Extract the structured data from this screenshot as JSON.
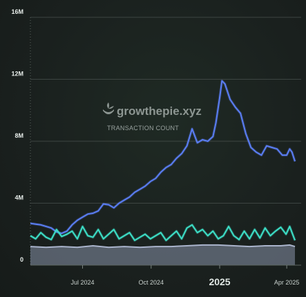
{
  "watermark": {
    "brand": "growthepie.xyz",
    "subtitle": "TRANSACTION COUNT"
  },
  "chart_data": {
    "type": "line",
    "ylim": [
      0,
      16000000
    ],
    "y_ticks": [
      {
        "value": 0,
        "label": "0"
      },
      {
        "value": 4000000,
        "label": "4M"
      },
      {
        "value": 8000000,
        "label": "8M"
      },
      {
        "value": 12000000,
        "label": "12M"
      },
      {
        "value": 16000000,
        "label": "16M"
      }
    ],
    "xlim": [
      "2024-04-22",
      "2025-04-12"
    ],
    "x_ticks": [
      {
        "date": "2024-07-01",
        "label": "Jul 2024",
        "style": "normal"
      },
      {
        "date": "2024-10-01",
        "label": "Oct 2024",
        "style": "normal"
      },
      {
        "date": "2025-01-01",
        "label": "2025",
        "style": "year"
      },
      {
        "date": "2025-04-01",
        "label": "Apr 2025",
        "style": "normal"
      }
    ],
    "grid": true,
    "series": [
      {
        "color": "#5b7ef5",
        "style": "line",
        "points": [
          [
            "2024-04-22",
            2700000
          ],
          [
            "2024-04-29",
            2650000
          ],
          [
            "2024-05-06",
            2600000
          ],
          [
            "2024-05-13",
            2500000
          ],
          [
            "2024-05-20",
            2400000
          ],
          [
            "2024-05-27",
            2150000
          ],
          [
            "2024-06-03",
            2050000
          ],
          [
            "2024-06-10",
            2200000
          ],
          [
            "2024-06-17",
            2600000
          ],
          [
            "2024-06-24",
            2900000
          ],
          [
            "2024-07-01",
            3100000
          ],
          [
            "2024-07-08",
            3300000
          ],
          [
            "2024-07-15",
            3350000
          ],
          [
            "2024-07-22",
            3500000
          ],
          [
            "2024-07-29",
            3950000
          ],
          [
            "2024-08-05",
            3900000
          ],
          [
            "2024-08-12",
            3700000
          ],
          [
            "2024-08-19",
            4000000
          ],
          [
            "2024-08-26",
            4200000
          ],
          [
            "2024-09-02",
            4400000
          ],
          [
            "2024-09-09",
            4700000
          ],
          [
            "2024-09-16",
            4900000
          ],
          [
            "2024-09-23",
            5100000
          ],
          [
            "2024-09-30",
            5400000
          ],
          [
            "2024-10-07",
            5600000
          ],
          [
            "2024-10-14",
            6000000
          ],
          [
            "2024-10-21",
            6300000
          ],
          [
            "2024-10-28",
            6500000
          ],
          [
            "2024-11-04",
            6900000
          ],
          [
            "2024-11-11",
            7200000
          ],
          [
            "2024-11-18",
            7700000
          ],
          [
            "2024-11-25",
            8800000
          ],
          [
            "2024-12-02",
            7900000
          ],
          [
            "2024-12-09",
            8100000
          ],
          [
            "2024-12-16",
            8000000
          ],
          [
            "2024-12-23",
            8300000
          ],
          [
            "2024-12-27",
            9200000
          ],
          [
            "2025-01-01",
            10800000
          ],
          [
            "2025-01-04",
            11900000
          ],
          [
            "2025-01-08",
            11700000
          ],
          [
            "2025-01-15",
            10700000
          ],
          [
            "2025-01-22",
            10200000
          ],
          [
            "2025-01-29",
            9800000
          ],
          [
            "2025-02-05",
            8500000
          ],
          [
            "2025-02-12",
            7600000
          ],
          [
            "2025-02-19",
            7300000
          ],
          [
            "2025-02-26",
            7100000
          ],
          [
            "2025-03-05",
            7700000
          ],
          [
            "2025-03-12",
            7600000
          ],
          [
            "2025-03-19",
            7500000
          ],
          [
            "2025-03-26",
            7100000
          ],
          [
            "2025-04-01",
            7100000
          ],
          [
            "2025-04-05",
            7500000
          ],
          [
            "2025-04-08",
            7300000
          ],
          [
            "2025-04-12",
            6700000
          ]
        ]
      },
      {
        "color": "#3de0c8",
        "style": "line",
        "points": [
          [
            "2024-04-22",
            1900000
          ],
          [
            "2024-04-29",
            1700000
          ],
          [
            "2024-05-06",
            2100000
          ],
          [
            "2024-05-13",
            1800000
          ],
          [
            "2024-05-20",
            1650000
          ],
          [
            "2024-05-27",
            2300000
          ],
          [
            "2024-06-03",
            1850000
          ],
          [
            "2024-06-10",
            2000000
          ],
          [
            "2024-06-17",
            2200000
          ],
          [
            "2024-06-24",
            1700000
          ],
          [
            "2024-07-01",
            2500000
          ],
          [
            "2024-07-08",
            1900000
          ],
          [
            "2024-07-15",
            1800000
          ],
          [
            "2024-07-22",
            2300000
          ],
          [
            "2024-07-29",
            1700000
          ],
          [
            "2024-08-05",
            2000000
          ],
          [
            "2024-08-12",
            2300000
          ],
          [
            "2024-08-19",
            1700000
          ],
          [
            "2024-08-26",
            1900000
          ],
          [
            "2024-09-02",
            2100000
          ],
          [
            "2024-09-09",
            1600000
          ],
          [
            "2024-09-16",
            1800000
          ],
          [
            "2024-09-23",
            2000000
          ],
          [
            "2024-09-30",
            1700000
          ],
          [
            "2024-10-07",
            1900000
          ],
          [
            "2024-10-14",
            2100000
          ],
          [
            "2024-10-21",
            1600000
          ],
          [
            "2024-10-28",
            1900000
          ],
          [
            "2024-11-04",
            2200000
          ],
          [
            "2024-11-11",
            1700000
          ],
          [
            "2024-11-18",
            2400000
          ],
          [
            "2024-11-25",
            2600000
          ],
          [
            "2024-12-02",
            2100000
          ],
          [
            "2024-12-09",
            2300000
          ],
          [
            "2024-12-16",
            1900000
          ],
          [
            "2024-12-23",
            2200000
          ],
          [
            "2024-12-30",
            1700000
          ],
          [
            "2025-01-06",
            1900000
          ],
          [
            "2025-01-13",
            2500000
          ],
          [
            "2025-01-20",
            1900000
          ],
          [
            "2025-01-27",
            1650000
          ],
          [
            "2025-02-03",
            2200000
          ],
          [
            "2025-02-10",
            1700000
          ],
          [
            "2025-02-17",
            2300000
          ],
          [
            "2025-02-24",
            1750000
          ],
          [
            "2025-03-03",
            2400000
          ],
          [
            "2025-03-10",
            1900000
          ],
          [
            "2025-03-17",
            2200000
          ],
          [
            "2025-03-24",
            2450000
          ],
          [
            "2025-03-31",
            2000000
          ],
          [
            "2025-04-05",
            2500000
          ],
          [
            "2025-04-12",
            1600000
          ]
        ]
      },
      {
        "color": "#aab4cc",
        "style": "area",
        "points": [
          [
            "2024-04-22",
            1200000
          ],
          [
            "2024-05-13",
            1150000
          ],
          [
            "2024-06-03",
            1200000
          ],
          [
            "2024-06-24",
            1150000
          ],
          [
            "2024-07-15",
            1250000
          ],
          [
            "2024-08-05",
            1150000
          ],
          [
            "2024-08-26",
            1200000
          ],
          [
            "2024-09-16",
            1150000
          ],
          [
            "2024-10-07",
            1200000
          ],
          [
            "2024-10-28",
            1200000
          ],
          [
            "2024-11-18",
            1250000
          ],
          [
            "2024-12-09",
            1300000
          ],
          [
            "2024-12-30",
            1300000
          ],
          [
            "2025-01-20",
            1250000
          ],
          [
            "2025-02-10",
            1200000
          ],
          [
            "2025-03-03",
            1250000
          ],
          [
            "2025-03-24",
            1250000
          ],
          [
            "2025-04-05",
            1300000
          ],
          [
            "2025-04-12",
            1200000
          ]
        ]
      }
    ]
  }
}
